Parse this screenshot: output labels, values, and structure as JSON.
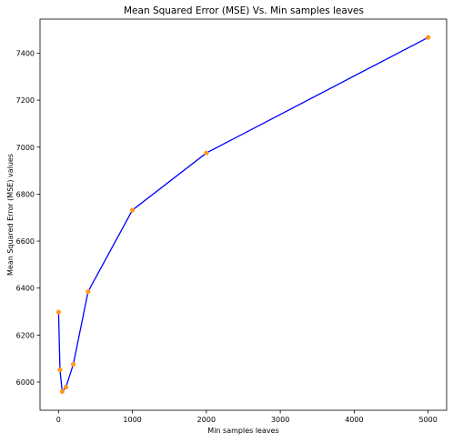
{
  "chart_data": {
    "type": "line",
    "title": "Mean Squared Error (MSE) Vs. Min samples leaves",
    "xlabel": "Min samples leaves",
    "ylabel": "Mean Squared Error (MSE) values",
    "xlim": [
      -250,
      5250
    ],
    "ylim": [
      5880,
      7545
    ],
    "x_ticks": [
      0,
      1000,
      2000,
      3000,
      4000,
      5000
    ],
    "y_ticks": [
      6000,
      6200,
      6400,
      6600,
      6800,
      7000,
      7200,
      7400
    ],
    "grid": false,
    "series": [
      {
        "x": [
          1,
          20,
          50,
          100,
          200,
          400,
          1000,
          2000,
          5000
        ],
        "values": [
          6298,
          6052,
          5960,
          5978,
          6075,
          6385,
          6732,
          6975,
          7467
        ],
        "line_color": "#0000ff",
        "marker_color": "#ff9a1a"
      }
    ]
  }
}
